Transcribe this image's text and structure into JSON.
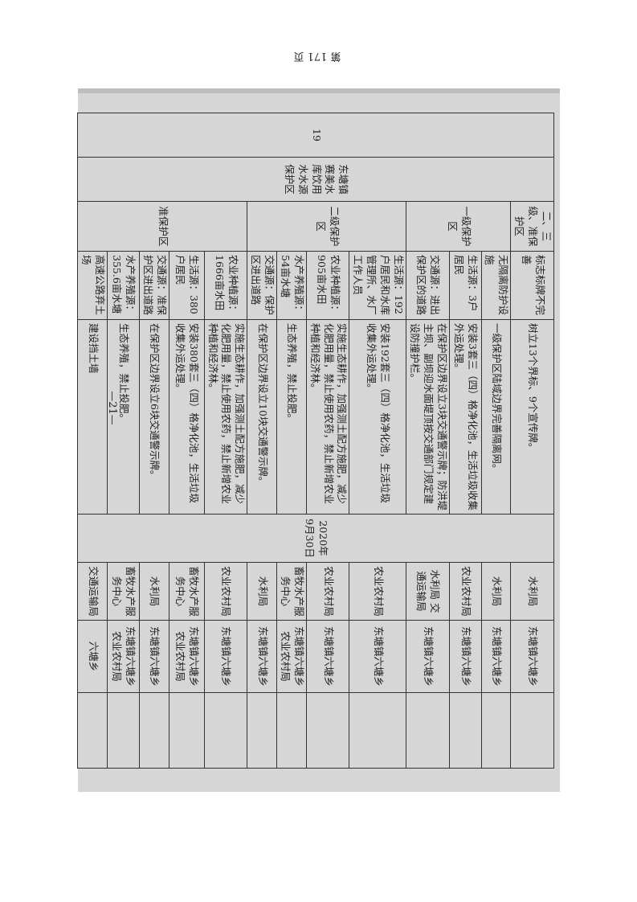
{
  "header": {
    "page_label": "第 171 页"
  },
  "footer": {
    "page_number": "—21—"
  },
  "table": {
    "index": "19",
    "source_name": "东塘镇赛美水库饮用水水源保护区",
    "deadline": "2020年9月30日",
    "levels": [
      "二、三级、准保护区",
      "一级保护区",
      "二级保护区",
      "准保护区"
    ],
    "rows": [
      {
        "problem": "标志标牌不完善",
        "measure": "树立13个界标、9个宣传牌。",
        "dept": "水利局",
        "town": "东塘镇六塘乡"
      },
      {
        "problem": "无隔离防护设施",
        "measure": "一级保护区陆域边界完善隔离网。",
        "dept": "水利局",
        "town": "东塘镇六塘乡"
      },
      {
        "problem": "生活源：3户居民",
        "measure": "安装3套三（四）格净化池，生活垃圾收集外运处理。",
        "dept": "农业农村局",
        "town": "东塘镇六塘乡"
      },
      {
        "problem": "交通源：进出保护区的道路",
        "measure": "在保护区边界设立3块交通警示牌；防洪堤主坝、副坝迎水面堤顶按交通部门规定建设防撞护栏。",
        "dept": "水利局 交通运输局",
        "town": "东塘镇六塘乡"
      },
      {
        "problem": "生活源：192户居民和水库管理所、水厂工作人员",
        "measure": "安装192套三（四）格净化池，生活垃圾收集外运处理。",
        "dept": "农业农村局",
        "town": "东塘镇六塘乡"
      },
      {
        "problem": "农业种植源：905亩水田",
        "measure": "实施生态耕作，加强测土配方施肥，减少化肥用量，禁止使用农药，禁止新增农业种植和经济林。",
        "dept": "农业农村局",
        "town": "东塘镇六塘乡"
      },
      {
        "problem": "水产养殖源：54亩水塘",
        "measure": "生态养殖，禁止投肥。",
        "dept": "畜牧水产服务中心",
        "town": "东塘镇六塘乡农业农村局"
      },
      {
        "problem": "交通源：保护区进出道路",
        "measure": "在保护区边界设立10块交通警示牌。",
        "dept": "水利局",
        "town": "东塘镇六塘乡"
      },
      {
        "problem": "农业种植源：1666亩水田",
        "measure": "实施生态耕作，加强测土配方施肥，减少化肥用量，禁止使用农药，禁止新增农业种植和经济林。",
        "dept": "农业农村局",
        "town": "东塘镇六塘乡"
      },
      {
        "problem": "生活源：380户居民",
        "measure": "安装380套三（四）格净化池，生活垃圾收集外运处理。",
        "dept": "畜牧水产服务中心",
        "town": "东塘镇六塘乡农业农村局"
      },
      {
        "problem": "交通源：准保护区进出道路",
        "measure": "在保护区边界设立6块交通警示牌。",
        "dept": "水利局",
        "town": "东塘镇六塘乡"
      },
      {
        "problem": "水产养殖源：355.6亩水塘",
        "measure": "生态养殖，禁止投肥。",
        "dept": "畜牧水产服务中心",
        "town": "东塘镇六塘乡农业农村局"
      },
      {
        "problem": "高速公路弃土场",
        "measure": "建设挡土墙",
        "dept": "交通运输局",
        "town": "六塘乡"
      }
    ]
  }
}
